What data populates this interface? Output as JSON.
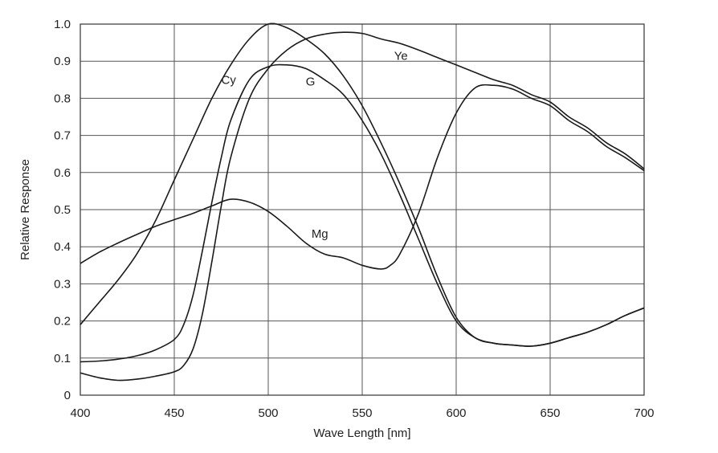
{
  "chart_data": {
    "type": "line",
    "xlabel": "Wave Length [nm]",
    "ylabel": "Relative Response",
    "xlim": [
      400,
      700
    ],
    "ylim": [
      0,
      1.0
    ],
    "grid": true,
    "x_ticks": [
      400,
      450,
      500,
      550,
      600,
      650,
      700
    ],
    "x_tick_labels": [
      "400",
      "450",
      "500",
      "550",
      "600",
      "650",
      "700"
    ],
    "y_ticks": [
      0,
      0.1,
      0.2,
      0.3,
      0.4,
      0.5,
      0.6,
      0.7,
      0.8,
      0.9,
      1.0
    ],
    "y_tick_labels": [
      "0",
      "0.1",
      "0.2",
      "0.3",
      "0.4",
      "0.5",
      "0.6",
      "0.7",
      "0.8",
      "0.9",
      "1.0"
    ],
    "series": [
      {
        "name": "Cy",
        "label_at": [
          475,
          0.85
        ],
        "points": [
          [
            400,
            0.19
          ],
          [
            410,
            0.25
          ],
          [
            420,
            0.31
          ],
          [
            430,
            0.38
          ],
          [
            440,
            0.47
          ],
          [
            450,
            0.58
          ],
          [
            460,
            0.69
          ],
          [
            470,
            0.8
          ],
          [
            480,
            0.89
          ],
          [
            490,
            0.96
          ],
          [
            500,
            1.0
          ],
          [
            510,
            0.99
          ],
          [
            520,
            0.96
          ],
          [
            530,
            0.92
          ],
          [
            540,
            0.86
          ],
          [
            550,
            0.78
          ],
          [
            560,
            0.68
          ],
          [
            570,
            0.57
          ],
          [
            580,
            0.45
          ],
          [
            590,
            0.32
          ],
          [
            600,
            0.21
          ],
          [
            610,
            0.155
          ],
          [
            620,
            0.14
          ],
          [
            630,
            0.135
          ],
          [
            640,
            0.132
          ],
          [
            650,
            0.14
          ],
          [
            660,
            0.155
          ],
          [
            670,
            0.17
          ],
          [
            680,
            0.19
          ],
          [
            690,
            0.215
          ],
          [
            700,
            0.235
          ]
        ]
      },
      {
        "name": "G",
        "label_at": [
          520,
          0.845
        ],
        "points": [
          [
            400,
            0.09
          ],
          [
            410,
            0.092
          ],
          [
            420,
            0.097
          ],
          [
            430,
            0.106
          ],
          [
            440,
            0.122
          ],
          [
            450,
            0.15
          ],
          [
            455,
            0.19
          ],
          [
            460,
            0.27
          ],
          [
            465,
            0.39
          ],
          [
            470,
            0.52
          ],
          [
            475,
            0.64
          ],
          [
            480,
            0.74
          ],
          [
            490,
            0.85
          ],
          [
            500,
            0.885
          ],
          [
            510,
            0.89
          ],
          [
            520,
            0.88
          ],
          [
            530,
            0.85
          ],
          [
            540,
            0.81
          ],
          [
            550,
            0.74
          ],
          [
            560,
            0.65
          ],
          [
            570,
            0.54
          ],
          [
            580,
            0.42
          ],
          [
            590,
            0.3
          ],
          [
            600,
            0.2
          ],
          [
            610,
            0.155
          ],
          [
            620,
            0.14
          ],
          [
            630,
            0.135
          ],
          [
            640,
            0.132
          ],
          [
            650,
            0.14
          ],
          [
            660,
            0.155
          ],
          [
            670,
            0.17
          ],
          [
            680,
            0.19
          ],
          [
            690,
            0.215
          ],
          [
            700,
            0.235
          ]
        ]
      },
      {
        "name": "Ye",
        "label_at": [
          567,
          0.915
        ],
        "points": [
          [
            400,
            0.06
          ],
          [
            410,
            0.047
          ],
          [
            420,
            0.04
          ],
          [
            430,
            0.043
          ],
          [
            440,
            0.051
          ],
          [
            450,
            0.063
          ],
          [
            455,
            0.08
          ],
          [
            460,
            0.125
          ],
          [
            465,
            0.22
          ],
          [
            470,
            0.36
          ],
          [
            475,
            0.51
          ],
          [
            480,
            0.64
          ],
          [
            490,
            0.8
          ],
          [
            500,
            0.88
          ],
          [
            510,
            0.93
          ],
          [
            520,
            0.96
          ],
          [
            530,
            0.973
          ],
          [
            540,
            0.978
          ],
          [
            550,
            0.975
          ],
          [
            560,
            0.96
          ],
          [
            570,
            0.948
          ],
          [
            580,
            0.93
          ],
          [
            590,
            0.91
          ],
          [
            600,
            0.89
          ],
          [
            610,
            0.87
          ],
          [
            620,
            0.85
          ],
          [
            630,
            0.835
          ],
          [
            640,
            0.81
          ],
          [
            650,
            0.79
          ],
          [
            660,
            0.75
          ],
          [
            670,
            0.72
          ],
          [
            680,
            0.68
          ],
          [
            690,
            0.65
          ],
          [
            700,
            0.61
          ]
        ]
      },
      {
        "name": "Mg",
        "label_at": [
          523,
          0.435
        ],
        "points": [
          [
            400,
            0.355
          ],
          [
            410,
            0.385
          ],
          [
            420,
            0.41
          ],
          [
            430,
            0.433
          ],
          [
            440,
            0.455
          ],
          [
            450,
            0.473
          ],
          [
            460,
            0.49
          ],
          [
            470,
            0.51
          ],
          [
            480,
            0.528
          ],
          [
            490,
            0.52
          ],
          [
            500,
            0.495
          ],
          [
            510,
            0.455
          ],
          [
            520,
            0.41
          ],
          [
            530,
            0.38
          ],
          [
            540,
            0.37
          ],
          [
            550,
            0.35
          ],
          [
            560,
            0.34
          ],
          [
            565,
            0.35
          ],
          [
            570,
            0.38
          ],
          [
            580,
            0.49
          ],
          [
            590,
            0.64
          ],
          [
            600,
            0.76
          ],
          [
            610,
            0.828
          ],
          [
            620,
            0.835
          ],
          [
            630,
            0.825
          ],
          [
            640,
            0.8
          ],
          [
            650,
            0.78
          ],
          [
            660,
            0.74
          ],
          [
            670,
            0.71
          ],
          [
            680,
            0.67
          ],
          [
            690,
            0.64
          ],
          [
            700,
            0.605
          ]
        ]
      }
    ]
  }
}
